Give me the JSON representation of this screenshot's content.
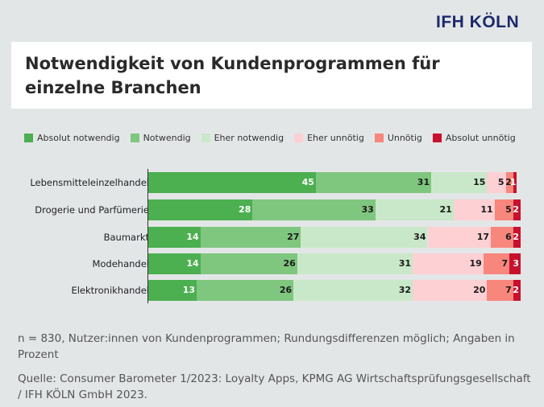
{
  "logo": "IFH KÖLN",
  "title": "Notwendigkeit von Kundenprogrammen für einzelne Branchen",
  "chart_data": {
    "type": "bar",
    "orientation": "horizontal",
    "stacked": true,
    "title": "Notwendigkeit von Kundenprogrammen für einzelne Branchen",
    "categories": [
      "Lebensmitteleinzelhandel",
      "Drogerie und Parfümerie",
      "Baumarkt",
      "Modehandel",
      "Elektronikhandel"
    ],
    "series": [
      {
        "name": "Absolut notwendig",
        "color": "#4caf50",
        "label_color": "#ffffff",
        "values": [
          45,
          28,
          14,
          14,
          13
        ]
      },
      {
        "name": "Notwendig",
        "color": "#7fc67f",
        "label_color": "#1a1a1a",
        "values": [
          31,
          33,
          27,
          26,
          26
        ]
      },
      {
        "name": "Eher notwendig",
        "color": "#c9e8c9",
        "label_color": "#1a1a1a",
        "values": [
          15,
          21,
          34,
          31,
          32
        ]
      },
      {
        "name": "Eher unnötig",
        "color": "#fdd0d4",
        "label_color": "#1a1a1a",
        "values": [
          5,
          11,
          17,
          19,
          20
        ]
      },
      {
        "name": "Unnötig",
        "color": "#f7867c",
        "label_color": "#1a1a1a",
        "values": [
          2,
          5,
          6,
          7,
          7
        ]
      },
      {
        "name": "Absolut unnötig",
        "color": "#c8102e",
        "label_color": "#ffffff",
        "values": [
          1,
          2,
          2,
          3,
          2
        ]
      }
    ],
    "legend": "top",
    "grid": false,
    "unit": "%"
  },
  "notes": {
    "sample": "n = 830, Nutzer:innen von Kundenprogrammen; Rundungsdifferenzen möglich; Angaben in Prozent",
    "source": "Quelle: Consumer Barometer 1/2023: Loyalty Apps, KPMG AG Wirtschaftsprüfungsgesellschaft / IFH KÖLN GmbH 2023."
  }
}
